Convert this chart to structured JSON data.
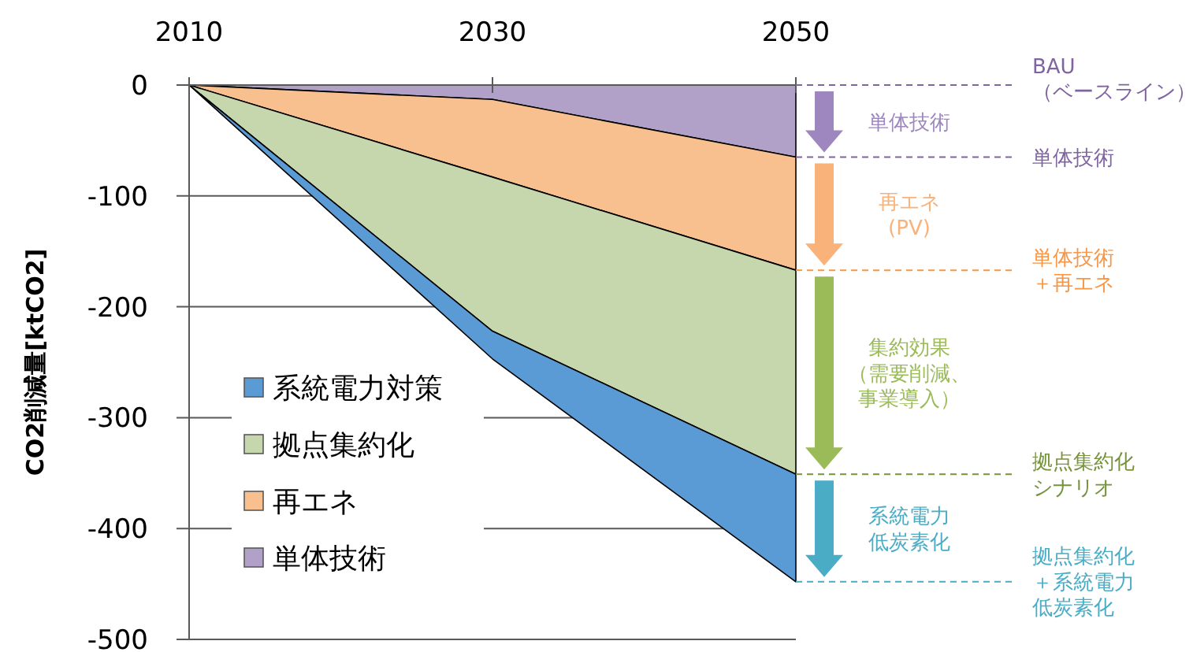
{
  "chart_data": {
    "type": "area",
    "stacked": true,
    "ylabel": "CO2削減量[ktCO2]",
    "x": [
      2010,
      2030,
      2050
    ],
    "xlim": [
      2010,
      2050
    ],
    "xticks": [
      2010,
      2030,
      2050
    ],
    "ylim": [
      -500,
      0
    ],
    "yticks": [
      0,
      -100,
      -200,
      -300,
      -400,
      -500
    ],
    "grid": "y",
    "legend": "bottom left",
    "series": [
      {
        "name": "単体技術",
        "color": "#b1a0c7",
        "values": [
          0,
          -13,
          -65
        ]
      },
      {
        "name": "再エネ",
        "color": "#f9c08f",
        "values": [
          0,
          -70,
          -102
        ]
      },
      {
        "name": "拠点集約化",
        "color": "#c6d7ad",
        "values": [
          0,
          -139,
          -184
        ]
      },
      {
        "name": "系統電力対策",
        "color": "#5b9bd5",
        "values": [
          0,
          -25,
          -97
        ]
      }
    ],
    "annotations": [
      "単体技術",
      "再エネ(PV)",
      "集約効果（需要削減、事業導入）",
      "系統電力低炭素化",
      "BAU（ベースライン）",
      "単体技術",
      "単体技術＋再エネ",
      "拠点集約化シナリオ",
      "拠点集約化＋系統電力低炭素化"
    ]
  }
}
